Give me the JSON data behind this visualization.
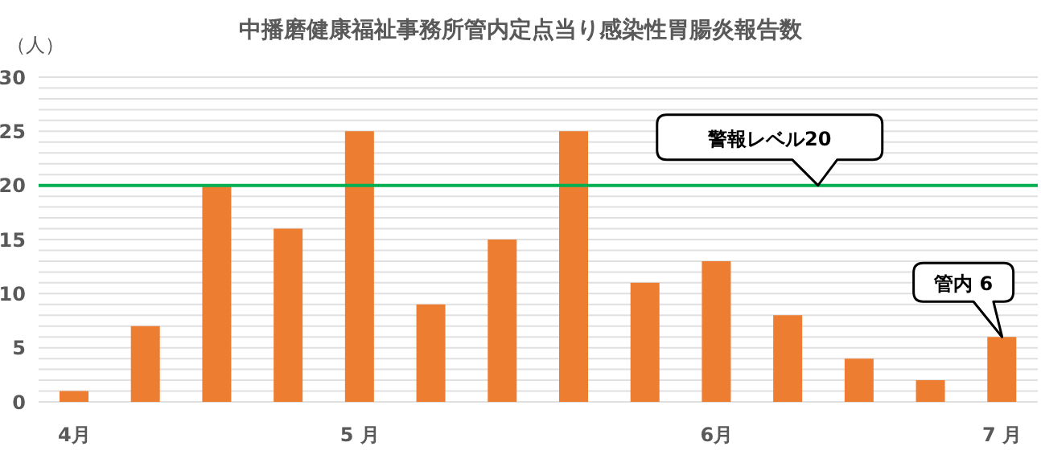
{
  "chart_data": {
    "type": "bar",
    "title": "中播磨健康福祉事務所管内定点当り感染性胃腸炎報告数",
    "ylabel": "（人）",
    "categories": [
      "4月",
      null,
      null,
      null,
      "5 月",
      null,
      null,
      null,
      null,
      "6月",
      null,
      null,
      null,
      "7 月"
    ],
    "values": [
      1,
      7,
      20,
      16,
      25,
      9,
      15,
      25,
      11,
      13,
      8,
      4,
      2,
      6
    ],
    "color": "#ed7d31",
    "ylim": [
      0,
      30
    ],
    "yticks": [
      0,
      {
        "value": 1,
        "label": null
      },
      {
        "value": 2,
        "label": null
      },
      {
        "value": 3,
        "label": null
      },
      {
        "value": 4,
        "label": null
      },
      5,
      {
        "value": 6,
        "label": null
      },
      {
        "value": 7,
        "label": null
      },
      {
        "value": 8,
        "label": null
      },
      {
        "value": 9,
        "label": null
      },
      10,
      {
        "value": 11,
        "label": null
      },
      {
        "value": 12,
        "label": null
      },
      {
        "value": 13,
        "label": null
      },
      {
        "value": 14,
        "label": null
      },
      15,
      {
        "value": 16,
        "label": null
      },
      {
        "value": 17,
        "label": null
      },
      {
        "value": 18,
        "label": null
      },
      {
        "value": 19,
        "label": null
      },
      20,
      {
        "value": 21,
        "label": null
      },
      {
        "value": 22,
        "label": null
      },
      {
        "value": 23,
        "label": null
      },
      {
        "value": 24,
        "label": null
      },
      25,
      {
        "value": 26,
        "label": null
      },
      {
        "value": 27,
        "label": null
      },
      {
        "value": 28,
        "label": null
      },
      {
        "value": 29,
        "label": null
      },
      30
    ],
    "grid": "y",
    "legend": false,
    "ref_lines": [
      {
        "axis": "y",
        "value": 20,
        "label": "警報レベル20",
        "color": "#00b050"
      }
    ],
    "annotations": [
      {
        "text": "管内 6",
        "x": "7 月",
        "y": 6
      }
    ]
  }
}
